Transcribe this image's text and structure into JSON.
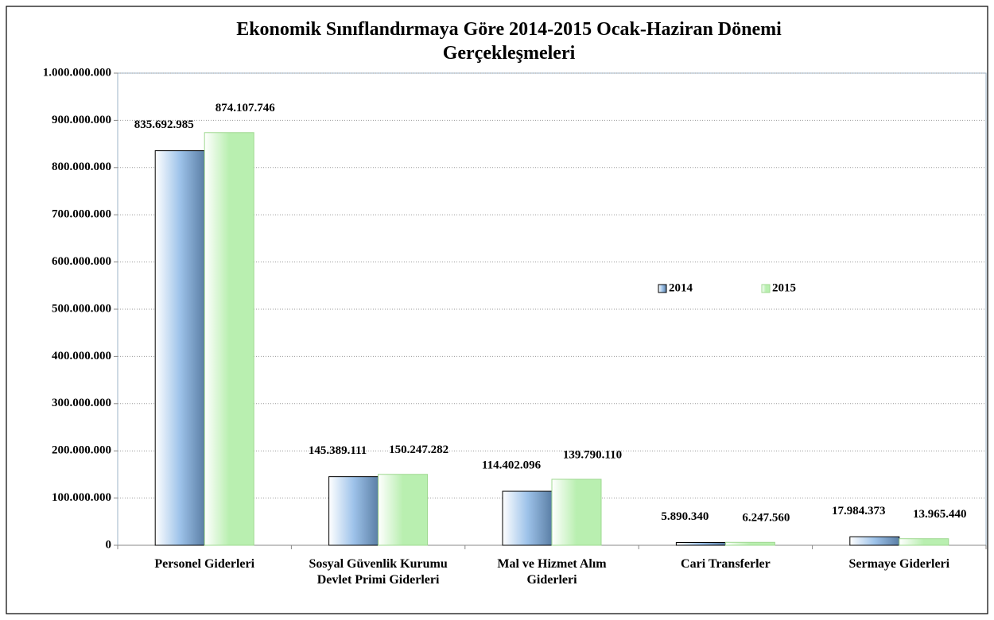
{
  "chart_data": {
    "type": "bar",
    "title": "Ekonomik Sınıflandırmaya Göre 2014-2015 Ocak-Haziran Dönemi Gerçekleşmeleri",
    "categories": [
      "Personel Giderleri",
      "Sosyal Güvenlik Kurumu Devlet Primi Giderleri",
      "Mal ve Hizmet Alım Giderleri",
      "Cari Transferler",
      "Sermaye Giderleri"
    ],
    "series": [
      {
        "name": "2014",
        "color": "#5b7fa6",
        "values": [
          835692985,
          145389111,
          114402096,
          5890340,
          17984373
        ],
        "value_labels": [
          "835.692.985",
          "145.389.111",
          "114.402.096",
          "5.890.340",
          "17.984.373"
        ]
      },
      {
        "name": "2015",
        "color": "#b9efb0",
        "values": [
          874107746,
          150247282,
          139790110,
          6247560,
          13965440
        ],
        "value_labels": [
          "874.107.746",
          "150.247.282",
          "139.790.110",
          "6.247.560",
          "13.965.440"
        ]
      }
    ],
    "ylim": [
      0,
      1000000000
    ],
    "yticks": [
      0,
      {
        "value": 100000000,
        "label": "100.000.000"
      },
      {
        "value": 200000000,
        "label": "200.000.000"
      },
      {
        "value": 300000000,
        "label": "300.000.000"
      },
      {
        "value": 400000000,
        "label": "400.000.000"
      },
      {
        "value": 500000000,
        "label": "500.000.000"
      },
      {
        "value": 600000000,
        "label": "600.000.000"
      },
      {
        "value": 700000000,
        "label": "700.000.000"
      },
      {
        "value": 800000000,
        "label": "800.000.000"
      },
      {
        "value": 900000000,
        "label": "900.000.000"
      },
      {
        "value": 1000000000,
        "label": "1.000.000.000"
      }
    ],
    "grid": true,
    "legend_position": "center-right"
  }
}
